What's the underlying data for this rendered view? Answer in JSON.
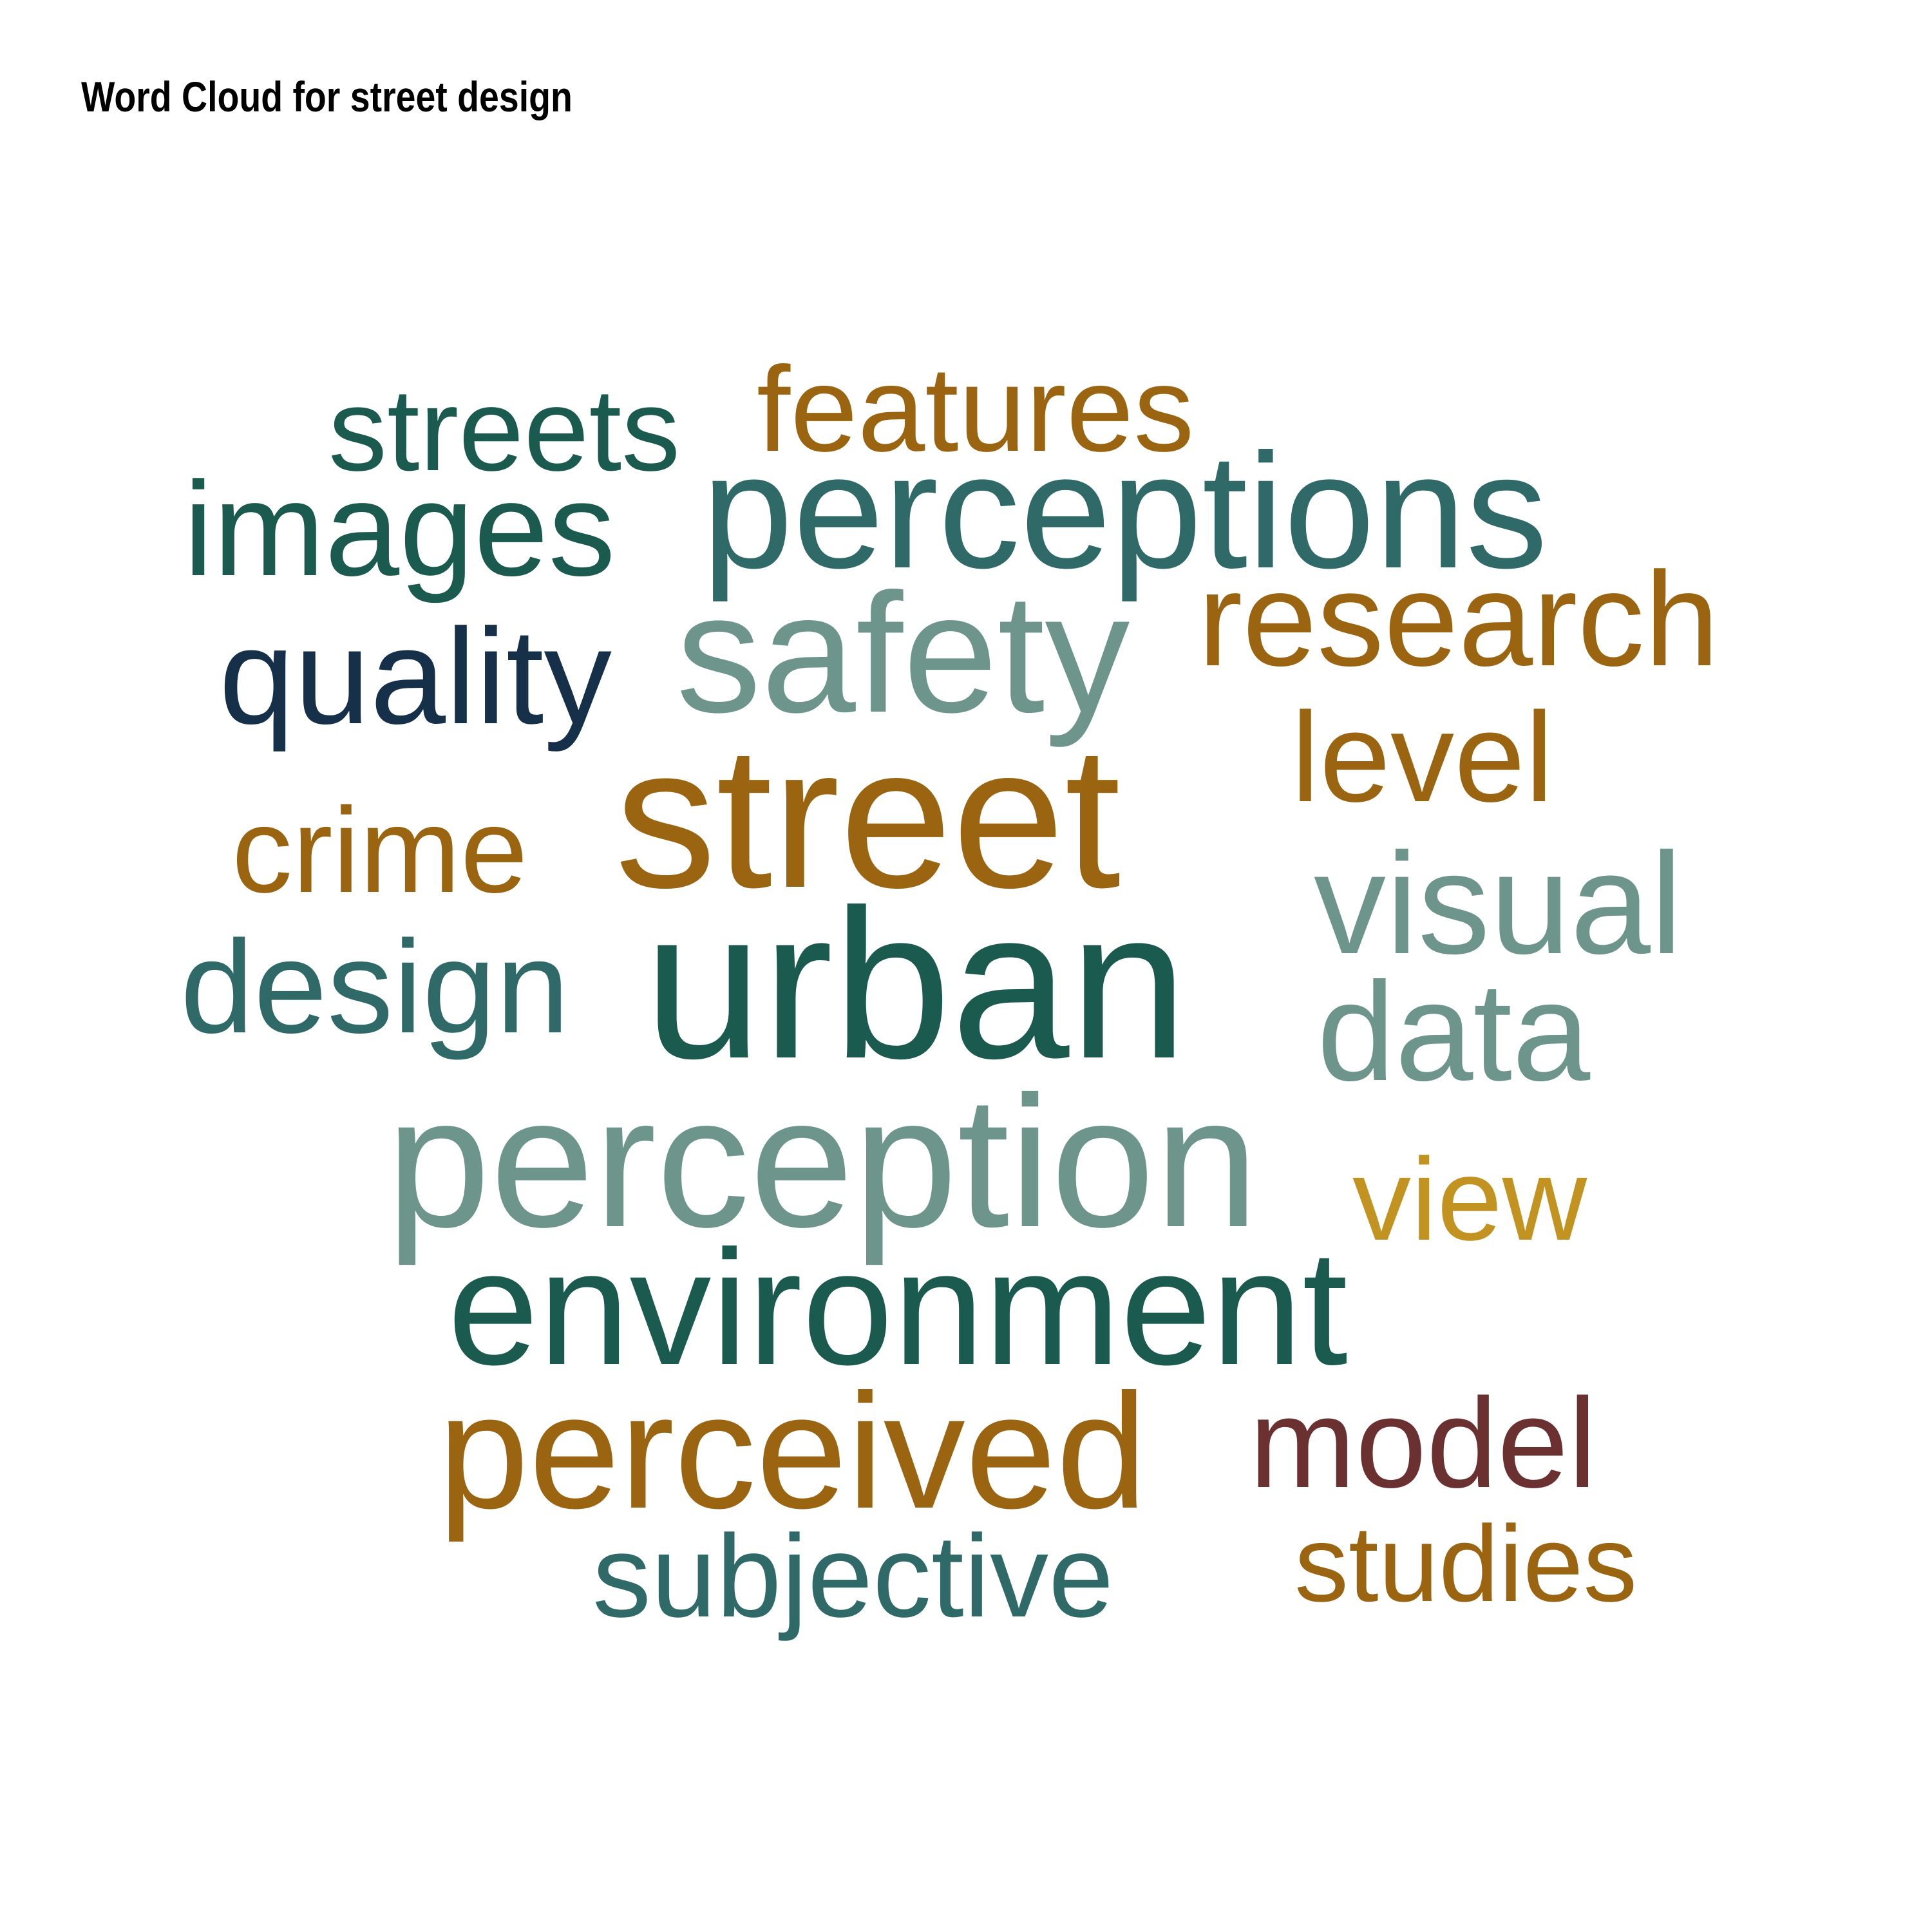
{
  "title": "Word Cloud for street design",
  "chart_data": {
    "type": "wordcloud",
    "title": "Word Cloud for street design",
    "words": [
      {
        "text": "urban",
        "weight": 100,
        "color": "#1b5a4e"
      },
      {
        "text": "street",
        "weight": 95,
        "color": "#9a6410"
      },
      {
        "text": "perception",
        "weight": 88,
        "color": "#6e958b"
      },
      {
        "text": "safety",
        "weight": 80,
        "color": "#6e958b"
      },
      {
        "text": "environment",
        "weight": 77,
        "color": "#1b5a4e"
      },
      {
        "text": "perceptions",
        "weight": 77,
        "color": "#2f6a69"
      },
      {
        "text": "perceived",
        "weight": 77,
        "color": "#9a6410"
      },
      {
        "text": "visual",
        "weight": 68,
        "color": "#6e958b"
      },
      {
        "text": "data",
        "weight": 66,
        "color": "#6e958b"
      },
      {
        "text": "quality",
        "weight": 64,
        "color": "#17304a"
      },
      {
        "text": "research",
        "weight": 63,
        "color": "#9a6410"
      },
      {
        "text": "images",
        "weight": 63,
        "color": "#1b5a4e"
      },
      {
        "text": "design",
        "weight": 62,
        "color": "#2f6a69"
      },
      {
        "text": "level",
        "weight": 60,
        "color": "#9a6410"
      },
      {
        "text": "model",
        "weight": 60,
        "color": "#6b3030"
      },
      {
        "text": "crime",
        "weight": 57,
        "color": "#9a6410"
      },
      {
        "text": "features",
        "weight": 57,
        "color": "#9a6410"
      },
      {
        "text": "streets",
        "weight": 55,
        "color": "#1b5a4e"
      },
      {
        "text": "subjective",
        "weight": 55,
        "color": "#2f6a69"
      },
      {
        "text": "view",
        "weight": 55,
        "color": "#c39321"
      },
      {
        "text": "studies",
        "weight": 51,
        "color": "#9a6410"
      }
    ]
  }
}
